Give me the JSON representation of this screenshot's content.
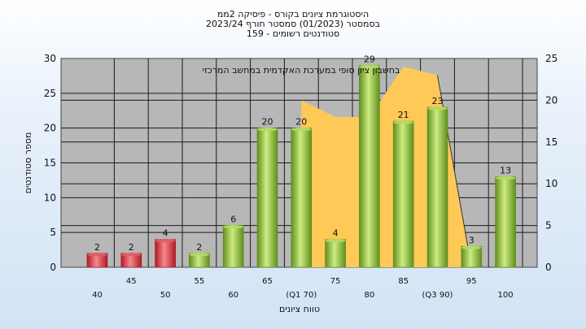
{
  "chart_data": {
    "type": "bar",
    "title_lines": [
      "היסטוגרמת ציונים בקורס - פיסיקה 2ממ",
      "בסמסטר  (01/2023)  סמסטר חורף 2023/24",
      "סטודנטים רשומים - 159"
    ],
    "annotation": "בחשבון ציון סופי במערכת האקדמית במחשב המרכזי",
    "xlabel": "טווח ציונים",
    "ylabel": "מספר סטודנטים",
    "x_tick_labels": [
      "40",
      "45",
      "50",
      "55",
      "60",
      "65",
      "(Q1 70)",
      "75",
      "80",
      "85",
      "(Q3 90)",
      "95",
      "100"
    ],
    "y_left_ticks": [
      "0",
      "5",
      "10",
      "15",
      "20",
      "25",
      "30"
    ],
    "y_right_ticks": [
      "0",
      "5",
      "10",
      "15",
      "20",
      "25"
    ],
    "ylim_left": [
      0,
      30
    ],
    "ylim_right": [
      0,
      25
    ],
    "grid": true,
    "bars": {
      "values": [
        2,
        2,
        4,
        2,
        6,
        20,
        20,
        4,
        29,
        21,
        23,
        3,
        13
      ],
      "labels": [
        "2",
        "2",
        "4",
        "2",
        "6",
        "20",
        "20",
        "4",
        "29",
        "21",
        "23",
        "3",
        "13"
      ],
      "colors": [
        "red",
        "red",
        "red",
        "green",
        "green",
        "green",
        "green",
        "green",
        "green",
        "green",
        "green",
        "green",
        "green"
      ]
    },
    "area_series": {
      "axis": "right",
      "points": [
        [
          6,
          20
        ],
        [
          7,
          18
        ],
        [
          8,
          18
        ],
        [
          9,
          24
        ],
        [
          10,
          23
        ],
        [
          11,
          0
        ]
      ]
    }
  },
  "colors": {
    "plot_bg": "#b7b7b7",
    "area_fill": "#ffc957",
    "red_dark": "#a8131c",
    "red_light": "#f47c84",
    "green_dark": "#5b8a1a",
    "green_light": "#c9ea7c"
  }
}
